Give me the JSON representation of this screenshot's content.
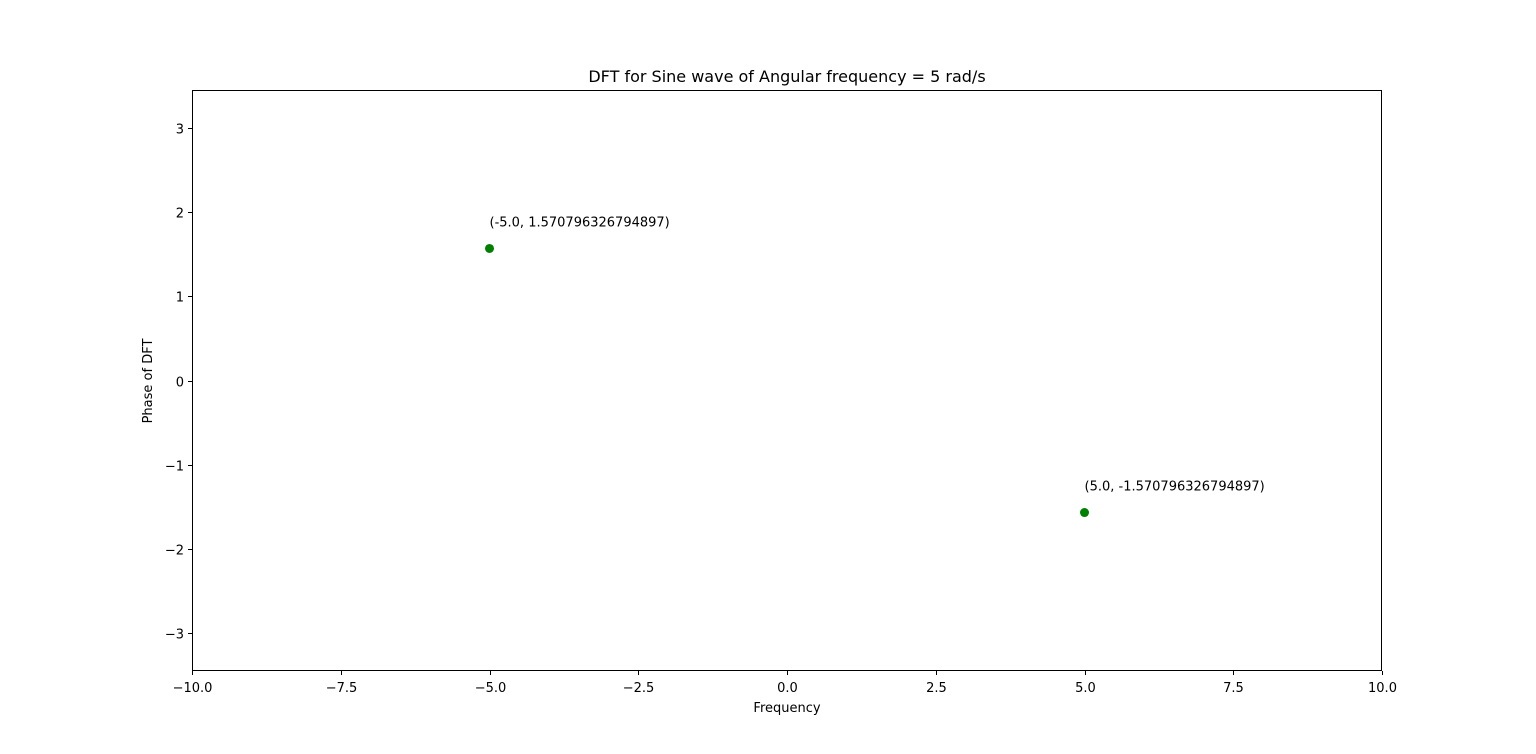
{
  "chart_data": {
    "type": "scatter",
    "title": "DFT for Sine wave of Angular frequency = 5 rad/s",
    "xlabel": "Frequency",
    "ylabel": "Phase of DFT",
    "xlim": [
      -10.0,
      10.0
    ],
    "ylim": [
      -3.4557519189487724,
      3.4557519189487724
    ],
    "xticks": [
      -10.0,
      -7.5,
      -5.0,
      -2.5,
      0.0,
      2.5,
      5.0,
      7.5,
      10.0
    ],
    "xtick_labels": [
      "−10.0",
      "−7.5",
      "−5.0",
      "−2.5",
      "0.0",
      "2.5",
      "5.0",
      "7.5",
      "10.0"
    ],
    "yticks": [
      -3,
      -2,
      -1,
      0,
      1,
      2,
      3
    ],
    "ytick_labels": [
      "−3",
      "−2",
      "−1",
      "0",
      "1",
      "2",
      "3"
    ],
    "grid": false,
    "marker_color": "#008000",
    "points": [
      {
        "x": -5.0,
        "y": 1.570796326794897,
        "label": "(-5.0, 1.570796326794897)"
      },
      {
        "x": 5.0,
        "y": -1.570796326794897,
        "label": "(5.0, -1.570796326794897)"
      }
    ]
  }
}
